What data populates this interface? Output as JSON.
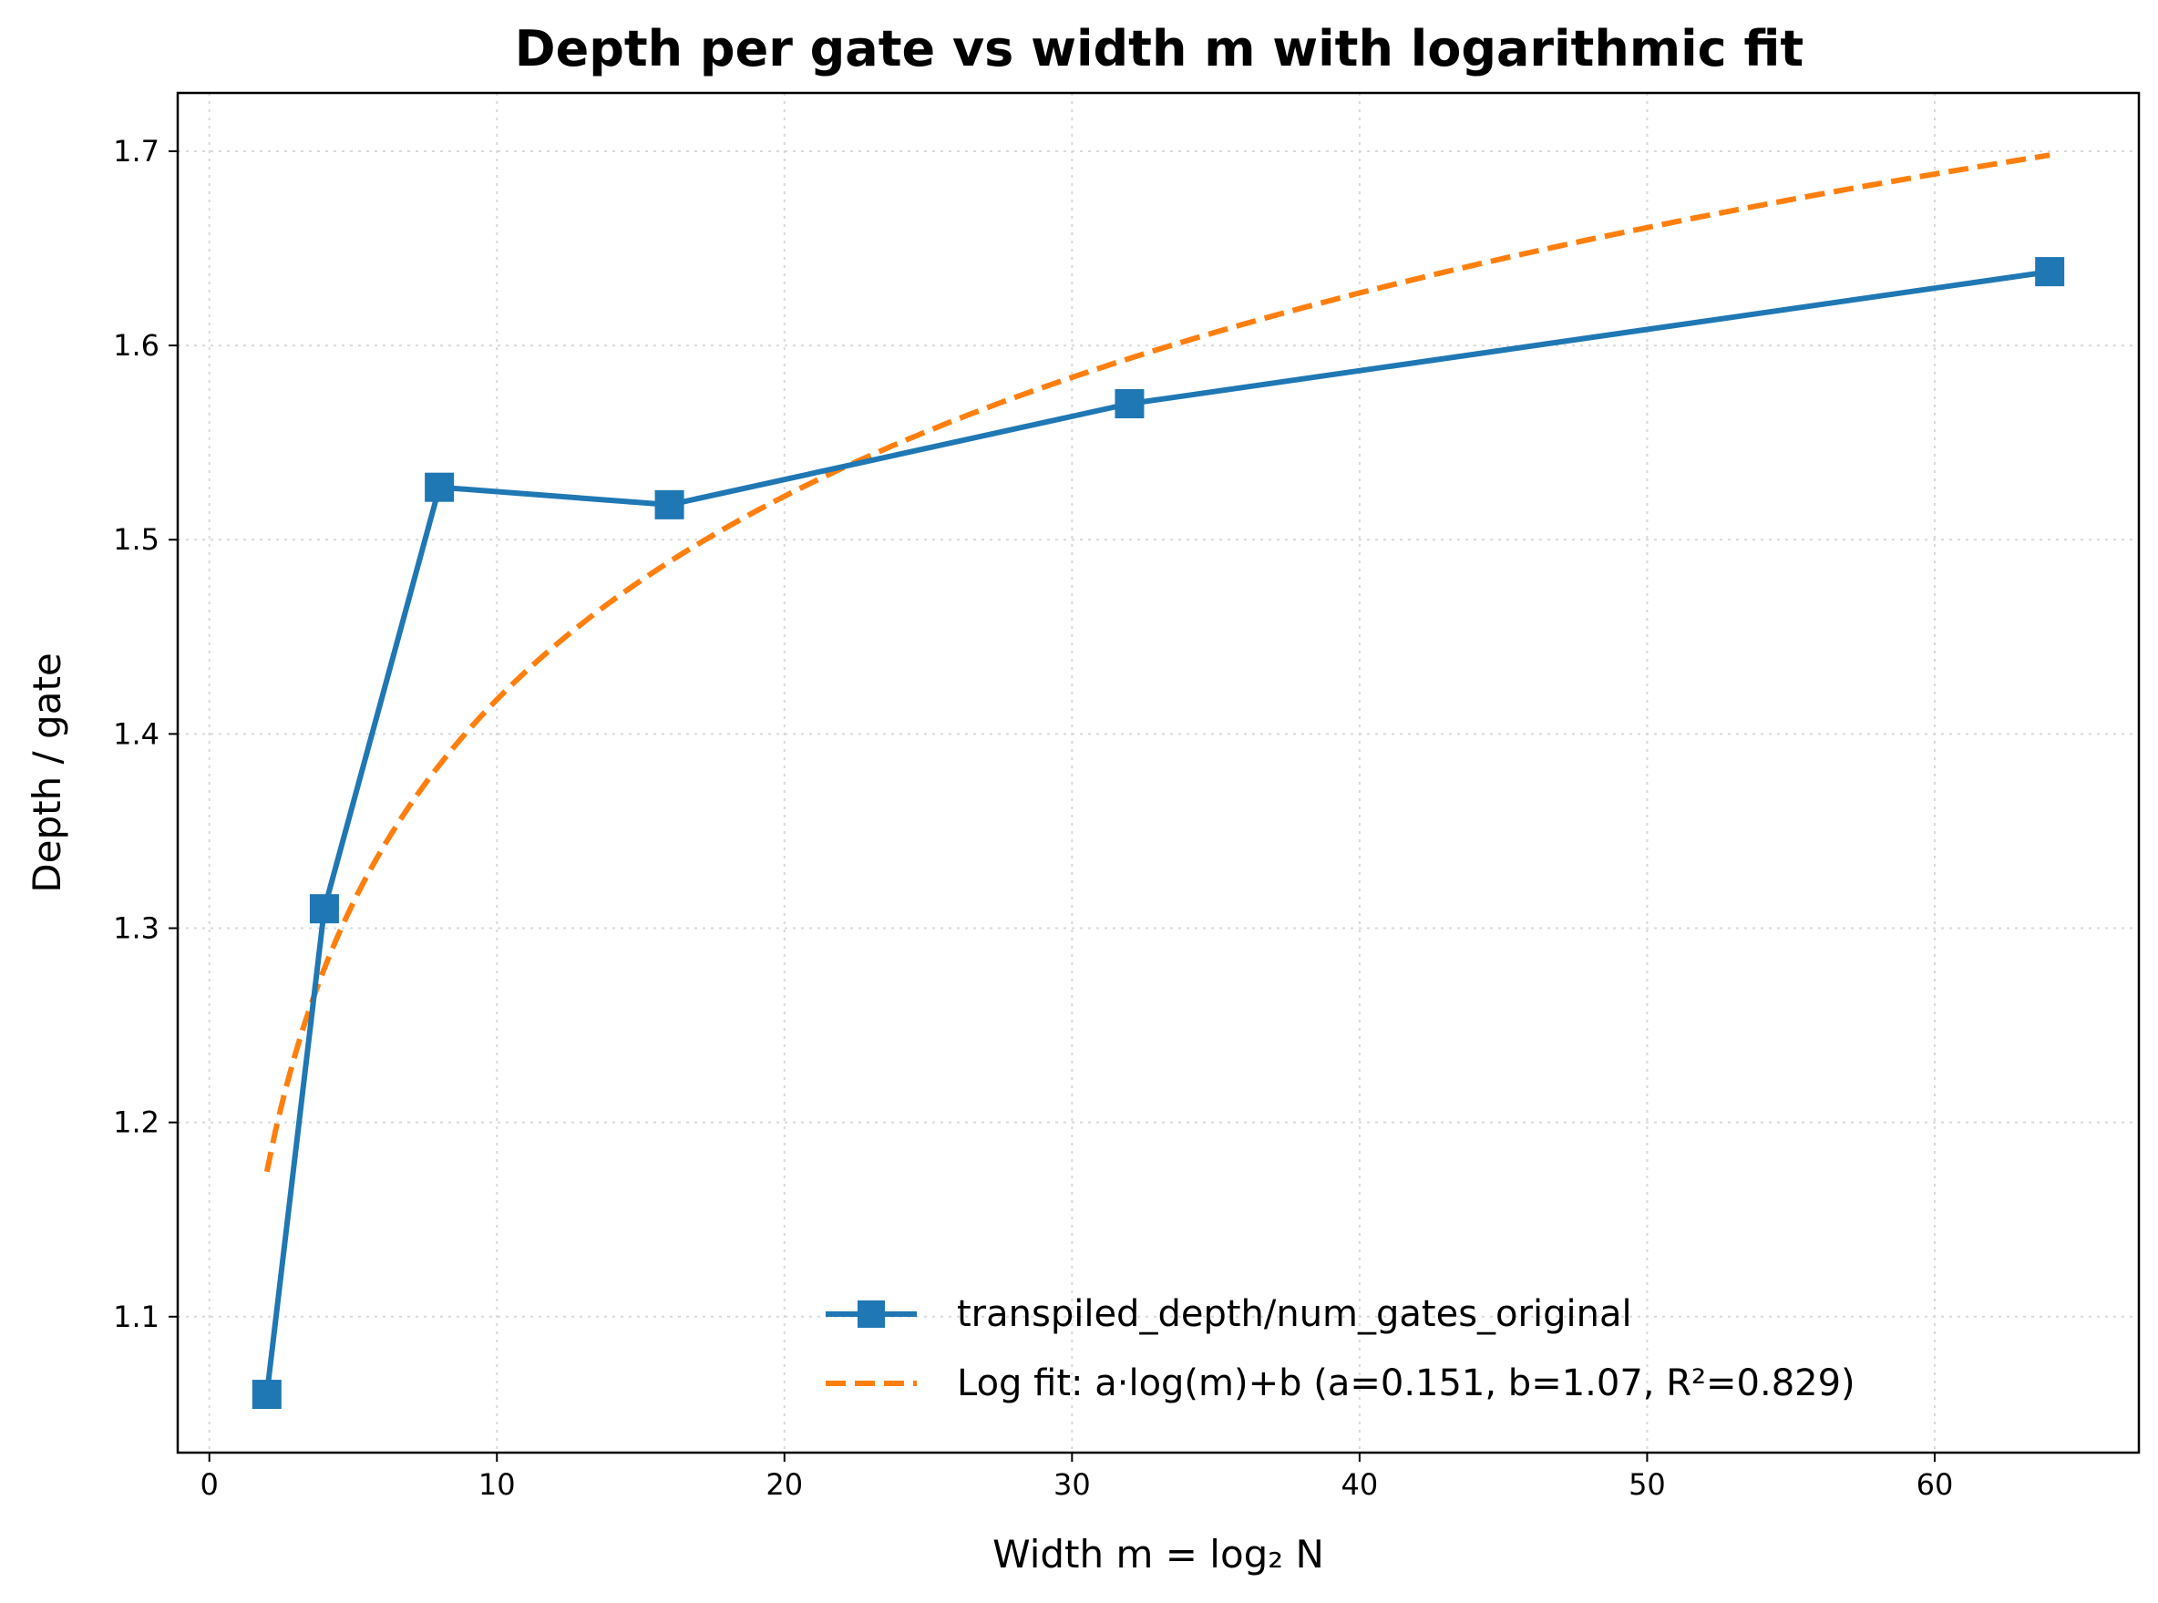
{
  "chart_data": {
    "type": "line",
    "title": "Depth per gate vs width m with logarithmic fit",
    "xlabel": "Width m = log₂ N",
    "ylabel": "Depth / gate",
    "xlim": [
      -1.1,
      67.1
    ],
    "ylim": [
      1.03,
      1.73
    ],
    "xticks": [
      0,
      10,
      20,
      30,
      40,
      50,
      60
    ],
    "yticks": [
      1.1,
      1.2,
      1.3,
      1.4,
      1.5,
      1.6,
      1.7
    ],
    "grid": true,
    "legend_position": "lower right",
    "series": [
      {
        "name": "transpiled_depth/num_gates_original",
        "style": "solid line with square markers",
        "color": "#1f77b4",
        "x": [
          2,
          4,
          8,
          16,
          32,
          64
        ],
        "y": [
          1.06,
          1.31,
          1.527,
          1.518,
          1.57,
          1.638
        ]
      },
      {
        "name": "Log fit: a·log(m)+b  (a=0.151, b=1.07, R²=0.829)",
        "style": "dashed line",
        "color": "#ff7f0e",
        "fit": {
          "a": 0.151,
          "b": 1.07,
          "x_range": [
            2,
            64
          ]
        }
      }
    ]
  }
}
